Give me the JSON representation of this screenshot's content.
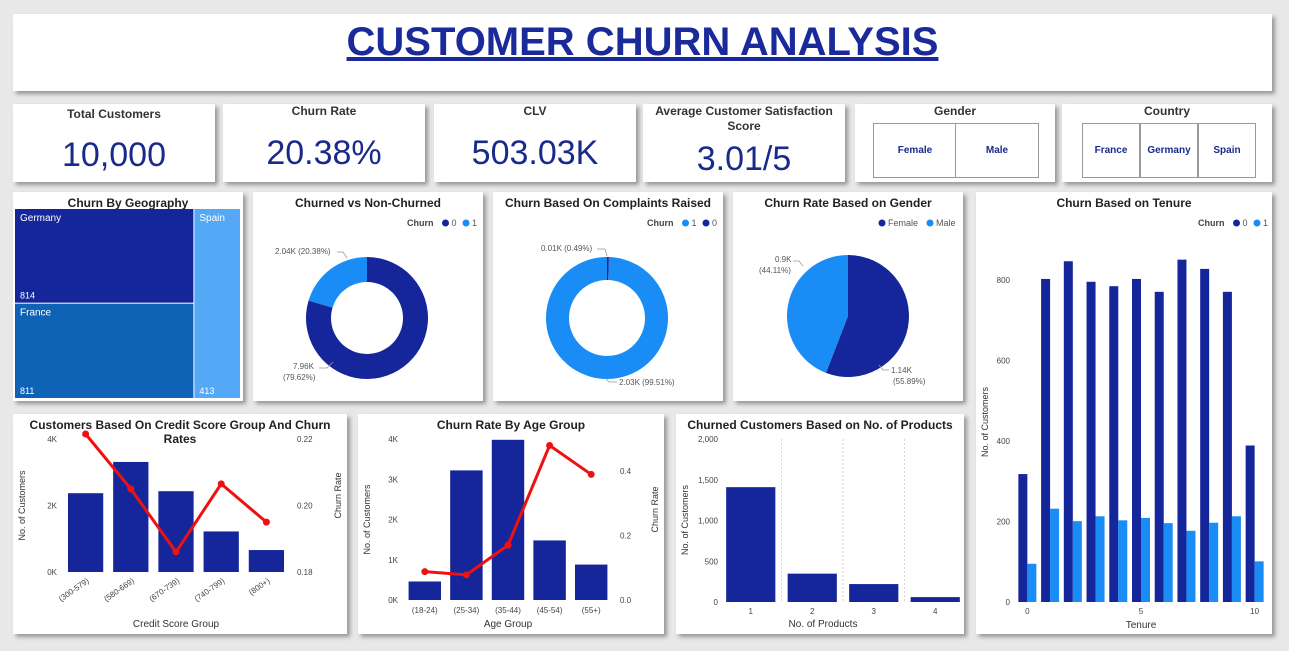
{
  "header": {
    "title": "CUSTOMER CHURN ANALYSIS"
  },
  "kpis": [
    {
      "title": "Total Customers",
      "value": "10,000"
    },
    {
      "title": "Churn Rate",
      "value": "20.38%"
    },
    {
      "title": "CLV",
      "value": "503.03K"
    },
    {
      "title": "Average Customer Satisfaction Score",
      "value": "3.01/5"
    }
  ],
  "slicers": {
    "gender": {
      "title": "Gender",
      "options": [
        "Female",
        "Male"
      ]
    },
    "country": {
      "title": "Country",
      "options": [
        "France",
        "Germany",
        "Spain"
      ]
    }
  },
  "colors": {
    "dark": "#15259a",
    "light": "#1a8cf5",
    "treemap_france": "#0e63b6",
    "treemap_spain": "#55a8f5",
    "line": "#ee1111"
  },
  "chart_data": [
    {
      "id": "geo",
      "type": "treemap",
      "title": "Churn By Geography",
      "categories": [
        "Germany",
        "France",
        "Spain"
      ],
      "values": [
        814,
        811,
        413
      ],
      "value_labels": [
        "814",
        "811",
        "413"
      ]
    },
    {
      "id": "churn-donut",
      "type": "pie",
      "title": "Churned vs Non-Churned",
      "legend_title": "Churn",
      "series": [
        {
          "name": "0",
          "value": 7960,
          "label": "7.96K",
          "pct": "(79.62%)"
        },
        {
          "name": "1",
          "value": 2040,
          "label": "2.04K (20.38%)"
        }
      ]
    },
    {
      "id": "complaints-donut",
      "type": "pie",
      "title": "Churn Based On Complaints Raised",
      "legend_title": "Churn",
      "series": [
        {
          "name": "1",
          "value": 2030,
          "label": "2.03K (99.51%)"
        },
        {
          "name": "0",
          "value": 10,
          "label": "0.01K (0.49%)"
        }
      ]
    },
    {
      "id": "gender-pie",
      "type": "pie",
      "title": "Churn Rate Based on Gender",
      "series": [
        {
          "name": "Female",
          "value": 1140,
          "label": "1.14K",
          "pct": "(55.89%)"
        },
        {
          "name": "Male",
          "value": 900,
          "label": "0.9K",
          "pct": "(44.11%)"
        }
      ]
    },
    {
      "id": "tenure",
      "type": "bar",
      "title": "Churn Based on Tenure",
      "legend_title": "Churn",
      "x": [
        0,
        1,
        2,
        3,
        4,
        5,
        6,
        7,
        8,
        9,
        10
      ],
      "series": [
        {
          "name": "0",
          "values": [
            318,
            803,
            847,
            796,
            785,
            803,
            771,
            851,
            828,
            771,
            389
          ]
        },
        {
          "name": "1",
          "values": [
            95,
            232,
            201,
            213,
            203,
            209,
            196,
            177,
            197,
            213,
            101
          ]
        }
      ],
      "xlabel": "Tenure",
      "ylabel": "No. of Customers",
      "ylim": [
        0,
        870
      ],
      "yticks": [
        0,
        200,
        400,
        600,
        800
      ],
      "xticks": [
        0,
        5,
        10
      ]
    },
    {
      "id": "credit",
      "type": "bar",
      "title": "Customers Based On Credit Score Group And Churn Rates",
      "categories": [
        "(300-579)",
        "(580-669)",
        "(670-739)",
        "(740-799)",
        "(800+)"
      ],
      "bars": [
        2370,
        3310,
        2430,
        1220,
        660
      ],
      "line": [
        0.2215,
        0.205,
        0.186,
        0.2065,
        0.195
      ],
      "xlabel": "Credit Score Group",
      "ylabel": "No. of Customers",
      "y2label": "Churn Rate",
      "ylim": [
        0,
        4000
      ],
      "yticks": [
        "0K",
        "2K",
        "4K"
      ],
      "y2lim": [
        0.18,
        0.22
      ],
      "y2ticks": [
        "0.18",
        "0.20",
        "0.22"
      ]
    },
    {
      "id": "age",
      "type": "bar",
      "title": "Churn Rate By Age Group",
      "categories": [
        "(18-24)",
        "(25-34)",
        "(35-44)",
        "(45-54)",
        "(55+)"
      ],
      "bars": [
        460,
        3220,
        3980,
        1480,
        880
      ],
      "line": [
        0.088,
        0.078,
        0.17,
        0.48,
        0.39
      ],
      "xlabel": "Age Group",
      "ylabel": "No. of Customers",
      "y2label": "Churn Rate",
      "ylim": [
        0,
        4000
      ],
      "yticks": [
        "0K",
        "1K",
        "2K",
        "3K",
        "4K"
      ],
      "y2lim": [
        0,
        0.5
      ],
      "y2ticks": [
        "0.0",
        "0.2",
        "0.4"
      ]
    },
    {
      "id": "products",
      "type": "bar",
      "title": "Churned Customers Based on No. of Products",
      "categories": [
        "1",
        "2",
        "3",
        "4"
      ],
      "values": [
        1409,
        348,
        220,
        60
      ],
      "xlabel": "No. of Products",
      "ylabel": "No. of Customers",
      "ylim": [
        0,
        2000
      ],
      "yticks": [
        "0",
        "500",
        "1,000",
        "1,500",
        "2,000"
      ]
    }
  ]
}
